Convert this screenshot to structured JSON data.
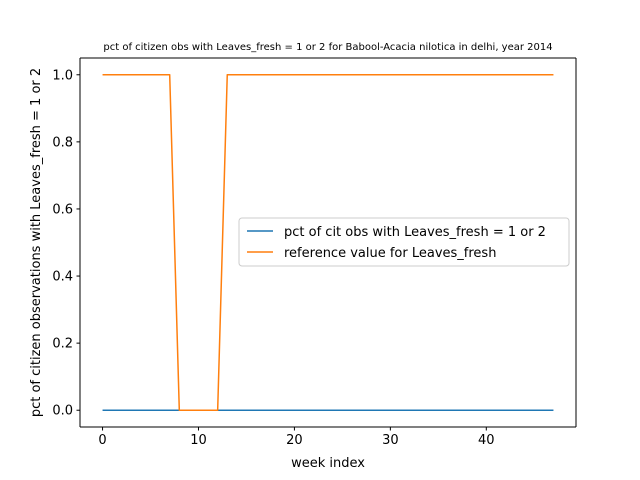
{
  "chart_data": {
    "type": "line",
    "title": "pct of citizen obs with Leaves_fresh = 1 or 2 for Babool-Acacia nilotica in delhi, year 2014",
    "xlabel": "week index",
    "ylabel": "pct of citizen observations with Leaves_fresh = 1 or 2",
    "xlim": [
      -2.35,
      49.35
    ],
    "ylim": [
      -0.05,
      1.05
    ],
    "xticks": [
      0,
      10,
      20,
      30,
      40
    ],
    "xtick_labels": [
      "0",
      "10",
      "20",
      "30",
      "40"
    ],
    "yticks": [
      0.0,
      0.2,
      0.4,
      0.6,
      0.8,
      1.0
    ],
    "ytick_labels": [
      "0.0",
      "0.2",
      "0.4",
      "0.6",
      "0.8",
      "1.0"
    ],
    "grid": false,
    "legend_position": "center-right",
    "series": [
      {
        "name": "pct of cit obs with Leaves_fresh = 1 or 2",
        "color": "#1f77b4",
        "x": [
          0,
          1,
          2,
          3,
          4,
          5,
          6,
          7,
          8,
          9,
          10,
          11,
          12,
          13,
          14,
          15,
          16,
          17,
          18,
          19,
          20,
          21,
          22,
          23,
          24,
          25,
          26,
          27,
          28,
          29,
          30,
          31,
          32,
          33,
          34,
          35,
          36,
          37,
          38,
          39,
          40,
          41,
          42,
          43,
          44,
          45,
          46,
          47
        ],
        "y": [
          0,
          0,
          0,
          0,
          0,
          0,
          0,
          0,
          0,
          0,
          0,
          0,
          0,
          0,
          0,
          0,
          0,
          0,
          0,
          0,
          0,
          0,
          0,
          0,
          0,
          0,
          0,
          0,
          0,
          0,
          0,
          0,
          0,
          0,
          0,
          0,
          0,
          0,
          0,
          0,
          0,
          0,
          0,
          0,
          0,
          0,
          0,
          0
        ]
      },
      {
        "name": "reference value for Leaves_fresh",
        "color": "#ff7f0e",
        "x": [
          0,
          1,
          2,
          3,
          4,
          5,
          6,
          7,
          8,
          9,
          10,
          11,
          12,
          13,
          14,
          15,
          16,
          17,
          18,
          19,
          20,
          21,
          22,
          23,
          24,
          25,
          26,
          27,
          28,
          29,
          30,
          31,
          32,
          33,
          34,
          35,
          36,
          37,
          38,
          39,
          40,
          41,
          42,
          43,
          44,
          45,
          46,
          47
        ],
        "y": [
          1,
          1,
          1,
          1,
          1,
          1,
          1,
          1,
          0,
          0,
          0,
          0,
          0,
          1,
          1,
          1,
          1,
          1,
          1,
          1,
          1,
          1,
          1,
          1,
          1,
          1,
          1,
          1,
          1,
          1,
          1,
          1,
          1,
          1,
          1,
          1,
          1,
          1,
          1,
          1,
          1,
          1,
          1,
          1,
          1,
          1,
          1,
          1
        ]
      }
    ]
  }
}
